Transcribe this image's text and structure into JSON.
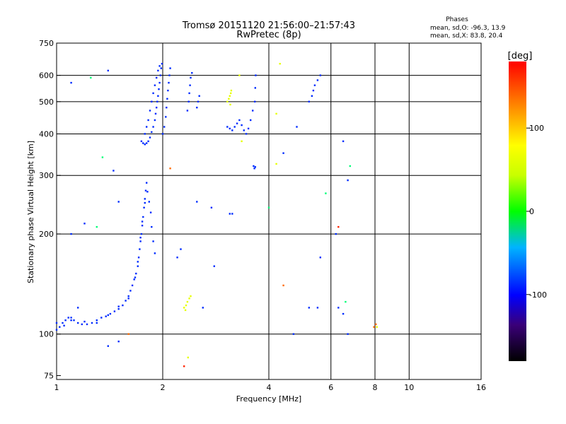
{
  "header": {
    "title_line1": "Tromsø 20151120 21:56:00–21:57:43",
    "title_line2": "RwPretec (8p)",
    "stats_title": "Phases",
    "stats_o": "mean, sd,O: -96.3, 13.9",
    "stats_x": "mean, sd,X: 83.8, 20.4"
  },
  "colorbar": {
    "label": "[deg]",
    "ticks": [
      {
        "value": 100,
        "label": "100"
      },
      {
        "value": 0,
        "label": "0"
      },
      {
        "value": -100,
        "label": "-100"
      }
    ],
    "range": [
      -180,
      180
    ],
    "colormap": "rainbow"
  },
  "chart_data": {
    "type": "scatter",
    "title": "Tromsø 20151120 21:56:00–21:57:43",
    "subtitle": "RwPretec (8p)",
    "xlabel": "Frequency [MHz]",
    "ylabel": "Stationary phase Virtual Height [km]",
    "xscale": "log",
    "yscale": "log",
    "xlim": [
      1,
      16
    ],
    "ylim": [
      73,
      750
    ],
    "grid": true,
    "x_ticks": [
      {
        "value": 1,
        "label": "1"
      },
      {
        "value": 2,
        "label": "2"
      },
      {
        "value": 4,
        "label": "4"
      },
      {
        "value": 6,
        "label": "6"
      },
      {
        "value": 8,
        "label": "8"
      },
      {
        "value": 10,
        "label": "10"
      },
      {
        "value": 16,
        "label": "16"
      }
    ],
    "y_ticks": [
      {
        "value": 75,
        "label": "75"
      },
      {
        "value": 100,
        "label": "100"
      },
      {
        "value": 200,
        "label": "200"
      },
      {
        "value": 300,
        "label": "300"
      },
      {
        "value": 400,
        "label": "400"
      },
      {
        "value": 500,
        "label": "500"
      },
      {
        "value": 600,
        "label": "600"
      },
      {
        "value": 750,
        "label": "750"
      }
    ],
    "points": [
      [
        1.0,
        103,
        -100
      ],
      [
        1.02,
        105,
        -100
      ],
      [
        1.04,
        108,
        -100
      ],
      [
        1.06,
        110,
        -100
      ],
      [
        1.08,
        112,
        -100
      ],
      [
        1.1,
        112,
        -100
      ],
      [
        1.12,
        110,
        -100
      ],
      [
        1.15,
        108,
        -100
      ],
      [
        1.18,
        107,
        -100
      ],
      [
        1.22,
        107,
        -100
      ],
      [
        1.26,
        108,
        -100
      ],
      [
        1.3,
        110,
        -100
      ],
      [
        1.34,
        112,
        -100
      ],
      [
        1.38,
        113,
        -100
      ],
      [
        1.42,
        115,
        -100
      ],
      [
        1.46,
        117,
        -100
      ],
      [
        1.5,
        119,
        -100
      ],
      [
        1.54,
        122,
        -100
      ],
      [
        1.57,
        126,
        -100
      ],
      [
        1.6,
        130,
        -100
      ],
      [
        1.62,
        135,
        -100
      ],
      [
        1.64,
        140,
        -100
      ],
      [
        1.66,
        146,
        -100
      ],
      [
        1.68,
        152,
        -100
      ],
      [
        1.7,
        160,
        -100
      ],
      [
        1.71,
        170,
        -100
      ],
      [
        1.72,
        180,
        -100
      ],
      [
        1.73,
        190,
        -100
      ],
      [
        1.74,
        200,
        -100
      ],
      [
        1.75,
        212,
        -100
      ],
      [
        1.76,
        225,
        -100
      ],
      [
        1.77,
        240,
        -100
      ],
      [
        1.78,
        255,
        -100
      ],
      [
        1.79,
        270,
        -100
      ],
      [
        1.8,
        285,
        -100
      ],
      [
        1.0,
        108,
        -100
      ],
      [
        1.05,
        106,
        -100
      ],
      [
        1.1,
        110,
        -100
      ],
      [
        1.2,
        109,
        -100
      ],
      [
        1.3,
        108,
        -100
      ],
      [
        1.4,
        114,
        -100
      ],
      [
        1.5,
        121,
        -100
      ],
      [
        1.6,
        128,
        -100
      ],
      [
        1.67,
        148,
        -100
      ],
      [
        1.7,
        165,
        -100
      ],
      [
        1.73,
        195,
        -100
      ],
      [
        1.75,
        218,
        -100
      ],
      [
        1.78,
        248,
        -100
      ],
      [
        1.81,
        268,
        -100
      ],
      [
        1.83,
        250,
        -100
      ],
      [
        1.85,
        232,
        -100
      ],
      [
        1.86,
        210,
        -100
      ],
      [
        1.88,
        190,
        -100
      ],
      [
        1.9,
        175,
        -100
      ],
      [
        1.74,
        380,
        -100
      ],
      [
        1.76,
        375,
        -100
      ],
      [
        1.78,
        372,
        -100
      ],
      [
        1.8,
        375,
        -100
      ],
      [
        1.82,
        380,
        -100
      ],
      [
        1.84,
        390,
        -100
      ],
      [
        1.86,
        405,
        -100
      ],
      [
        1.88,
        420,
        -100
      ],
      [
        1.9,
        440,
        -100
      ],
      [
        1.91,
        460,
        -100
      ],
      [
        1.92,
        480,
        -100
      ],
      [
        1.93,
        500,
        -100
      ],
      [
        1.94,
        520,
        -100
      ],
      [
        1.95,
        545,
        -100
      ],
      [
        1.96,
        570,
        -100
      ],
      [
        1.97,
        600,
        -100
      ],
      [
        1.98,
        630,
        -100
      ],
      [
        1.99,
        650,
        -100
      ],
      [
        1.78,
        400,
        -100
      ],
      [
        1.8,
        420,
        -100
      ],
      [
        1.82,
        440,
        -100
      ],
      [
        1.84,
        470,
        -100
      ],
      [
        1.86,
        500,
        -100
      ],
      [
        1.88,
        530,
        -100
      ],
      [
        1.9,
        560,
        -100
      ],
      [
        1.92,
        590,
        -100
      ],
      [
        1.94,
        620,
        -100
      ],
      [
        1.96,
        640,
        -100
      ],
      [
        2.0,
        400,
        -100
      ],
      [
        2.02,
        420,
        -100
      ],
      [
        2.04,
        450,
        -100
      ],
      [
        2.05,
        480,
        -100
      ],
      [
        2.06,
        510,
        -100
      ],
      [
        2.07,
        540,
        -100
      ],
      [
        2.08,
        570,
        -100
      ],
      [
        2.09,
        600,
        -100
      ],
      [
        2.1,
        630,
        -100
      ],
      [
        2.35,
        470,
        -100
      ],
      [
        2.37,
        500,
        -100
      ],
      [
        2.38,
        530,
        -100
      ],
      [
        2.39,
        560,
        -100
      ],
      [
        2.4,
        590,
        -100
      ],
      [
        2.42,
        610,
        -100
      ],
      [
        2.5,
        480,
        -100
      ],
      [
        2.52,
        500,
        -100
      ],
      [
        2.54,
        520,
        -100
      ],
      [
        3.05,
        420,
        -100
      ],
      [
        3.1,
        415,
        -100
      ],
      [
        3.15,
        410,
        -100
      ],
      [
        3.2,
        420,
        -100
      ],
      [
        3.25,
        430,
        -100
      ],
      [
        3.3,
        440,
        -100
      ],
      [
        3.35,
        425,
        -100
      ],
      [
        3.4,
        410,
        -100
      ],
      [
        3.45,
        400,
        -100
      ],
      [
        3.5,
        415,
        -100
      ],
      [
        3.55,
        440,
        -100
      ],
      [
        3.6,
        470,
        -100
      ],
      [
        3.65,
        500,
        -100
      ],
      [
        3.66,
        550,
        -100
      ],
      [
        3.67,
        600,
        -100
      ],
      [
        3.62,
        320,
        -100
      ],
      [
        3.64,
        315,
        -100
      ],
      [
        3.66,
        318,
        -100
      ],
      [
        3.1,
        230,
        -100
      ],
      [
        3.15,
        230,
        -100
      ],
      [
        3.05,
        500,
        100
      ],
      [
        3.08,
        510,
        100
      ],
      [
        3.1,
        520,
        100
      ],
      [
        3.12,
        530,
        100
      ],
      [
        3.13,
        540,
        100
      ],
      [
        3.11,
        490,
        100
      ],
      [
        2.3,
        120,
        100
      ],
      [
        2.33,
        122,
        100
      ],
      [
        2.35,
        125,
        100
      ],
      [
        2.38,
        128,
        100
      ],
      [
        2.4,
        130,
        100
      ],
      [
        2.32,
        118,
        100
      ],
      [
        2.36,
        85,
        100
      ],
      [
        4.2,
        325,
        100
      ],
      [
        4.3,
        650,
        100
      ],
      [
        4.2,
        460,
        100
      ],
      [
        3.3,
        600,
        100
      ],
      [
        3.35,
        380,
        100
      ],
      [
        5.3,
        520,
        -100
      ],
      [
        5.35,
        540,
        -100
      ],
      [
        5.4,
        560,
        -100
      ],
      [
        5.2,
        500,
        -100
      ],
      [
        5.5,
        580,
        -100
      ],
      [
        5.6,
        600,
        -100
      ],
      [
        6.5,
        380,
        -100
      ],
      [
        6.7,
        290,
        -100
      ],
      [
        6.3,
        120,
        -100
      ],
      [
        6.8,
        320,
        0
      ],
      [
        7.95,
        105,
        150
      ],
      [
        8.05,
        107,
        150
      ],
      [
        8.1,
        105,
        100
      ],
      [
        1.1,
        570,
        -100
      ],
      [
        1.25,
        590,
        0
      ],
      [
        1.4,
        620,
        -100
      ],
      [
        1.5,
        250,
        -100
      ],
      [
        1.3,
        210,
        0
      ],
      [
        1.35,
        340,
        0
      ],
      [
        1.45,
        310,
        -100
      ],
      [
        1.1,
        200,
        -100
      ],
      [
        1.2,
        215,
        -100
      ],
      [
        1.15,
        120,
        -100
      ],
      [
        1.5,
        95,
        -100
      ],
      [
        1.4,
        92,
        -100
      ],
      [
        1.6,
        100,
        150
      ],
      [
        2.1,
        315,
        150
      ],
      [
        2.3,
        80,
        170
      ],
      [
        2.2,
        170,
        -100
      ],
      [
        2.25,
        180,
        -100
      ],
      [
        2.6,
        120,
        -100
      ],
      [
        2.8,
        160,
        -100
      ],
      [
        2.5,
        250,
        -100
      ],
      [
        2.75,
        240,
        -100
      ],
      [
        4.4,
        140,
        150
      ],
      [
        4.7,
        100,
        -100
      ],
      [
        5.2,
        120,
        -100
      ],
      [
        5.5,
        120,
        -100
      ],
      [
        5.6,
        170,
        -100
      ],
      [
        6.2,
        200,
        -100
      ],
      [
        6.3,
        210,
        170
      ],
      [
        6.5,
        115,
        -100
      ],
      [
        6.6,
        125,
        0
      ],
      [
        6.7,
        100,
        -100
      ],
      [
        5.8,
        265,
        0
      ],
      [
        4.8,
        420,
        -100
      ],
      [
        4.4,
        350,
        -100
      ],
      [
        4.0,
        240,
        0
      ]
    ]
  }
}
